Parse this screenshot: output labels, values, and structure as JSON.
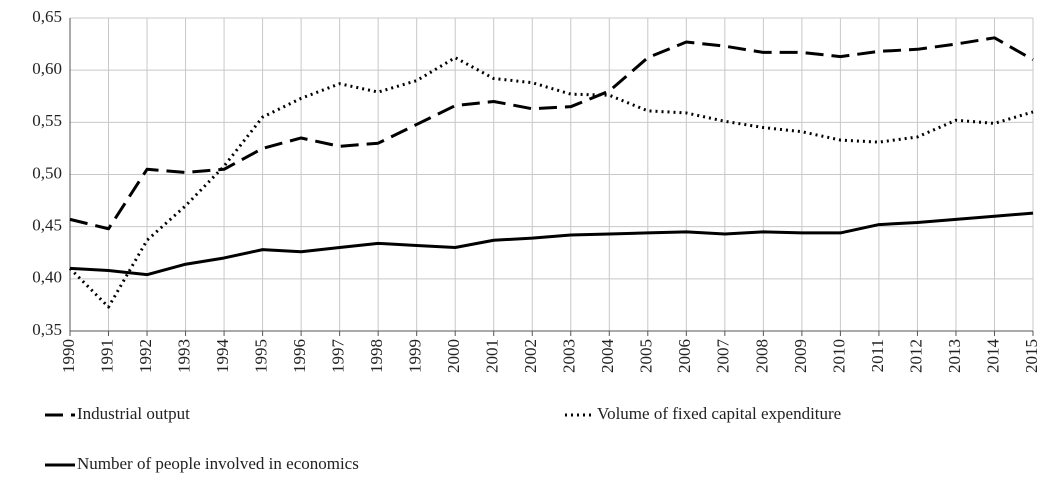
{
  "chart_data": {
    "type": "line",
    "categories": [
      "1990",
      "1991",
      "1992",
      "1993",
      "1994",
      "1995",
      "1996",
      "1997",
      "1998",
      "1999",
      "2000",
      "2001",
      "2002",
      "2003",
      "2004",
      "2005",
      "2006",
      "2007",
      "2008",
      "2009",
      "2010",
      "2011",
      "2012",
      "2013",
      "2014",
      "2015"
    ],
    "series": [
      {
        "name": "Industrial output",
        "color": "#000000",
        "dash": "dashed",
        "values": [
          0.457,
          0.448,
          0.505,
          0.502,
          0.505,
          0.525,
          0.535,
          0.527,
          0.53,
          0.548,
          0.566,
          0.57,
          0.563,
          0.565,
          0.58,
          0.612,
          0.627,
          0.623,
          0.617,
          0.617,
          0.613,
          0.618,
          0.62,
          0.625,
          0.631,
          0.61
        ]
      },
      {
        "name": "Volume of fixed capital expenditure",
        "color": "#000000",
        "dash": "dotted",
        "values": [
          0.41,
          0.373,
          0.437,
          0.47,
          0.508,
          0.555,
          0.573,
          0.587,
          0.579,
          0.59,
          0.612,
          0.592,
          0.588,
          0.577,
          0.576,
          0.561,
          0.559,
          0.551,
          0.545,
          0.541,
          0.533,
          0.531,
          0.536,
          0.552,
          0.549,
          0.56
        ]
      },
      {
        "name": "Number of people involved in economics",
        "color": "#000000",
        "dash": "solid",
        "values": [
          0.41,
          0.408,
          0.404,
          0.414,
          0.42,
          0.428,
          0.426,
          0.43,
          0.434,
          0.432,
          0.43,
          0.437,
          0.439,
          0.442,
          0.443,
          0.444,
          0.445,
          0.443,
          0.445,
          0.444,
          0.444,
          0.452,
          0.454,
          0.457,
          0.46,
          0.463
        ]
      }
    ],
    "ylim": [
      0.35,
      0.65
    ],
    "yticks": [
      {
        "value": 0.35,
        "label": "0,35"
      },
      {
        "value": 0.4,
        "label": "0,40"
      },
      {
        "value": 0.45,
        "label": "0,45"
      },
      {
        "value": 0.5,
        "label": "0,50"
      },
      {
        "value": 0.55,
        "label": "0,55"
      },
      {
        "value": 0.6,
        "label": "0,60"
      },
      {
        "value": 0.65,
        "label": "0,65"
      }
    ],
    "grid": true
  }
}
